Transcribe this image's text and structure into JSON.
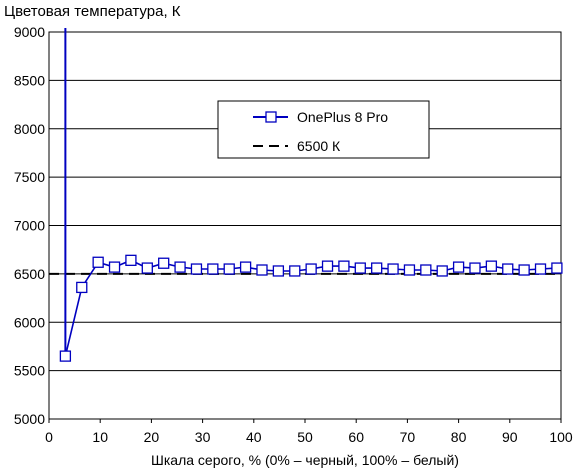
{
  "chart_data": {
    "type": "line",
    "title": "Цветовая температура, К",
    "xlabel": "Шкала серого, % (0% – черный, 100% – белый)",
    "ylabel": "",
    "xlim": [
      0,
      100
    ],
    "ylim": [
      5000,
      9000
    ],
    "xticks": [
      0,
      10,
      20,
      30,
      40,
      50,
      60,
      70,
      80,
      90,
      100
    ],
    "yticks": [
      5000,
      5500,
      6000,
      6500,
      7000,
      7500,
      8000,
      8500,
      9000
    ],
    "grid": "horizontal",
    "legend_position": "upper-center",
    "series": [
      {
        "name": "OnePlus 8 Pro",
        "color": "#0000c0",
        "marker": "square",
        "x": [
          3.2,
          6.4,
          9.6,
          12.8,
          16.0,
          19.2,
          22.4,
          25.6,
          28.8,
          32.0,
          35.2,
          38.4,
          41.6,
          44.8,
          48.0,
          51.2,
          54.4,
          57.6,
          60.8,
          64.0,
          67.2,
          70.4,
          73.6,
          76.8,
          80.0,
          83.2,
          86.4,
          89.6,
          92.8,
          96.0,
          99.2
        ],
        "y": [
          5650,
          6360,
          6620,
          6570,
          6640,
          6560,
          6610,
          6570,
          6550,
          6550,
          6550,
          6570,
          6540,
          6530,
          6530,
          6550,
          6580,
          6580,
          6560,
          6560,
          6550,
          6540,
          6540,
          6530,
          6570,
          6560,
          6580,
          6550,
          6540,
          6550,
          6560
        ],
        "spike_to_top_at_x": 3.2
      },
      {
        "name": "6500 К",
        "color": "#000000",
        "style": "dashed",
        "x": [
          0,
          100
        ],
        "y": [
          6500,
          6500
        ]
      }
    ]
  }
}
